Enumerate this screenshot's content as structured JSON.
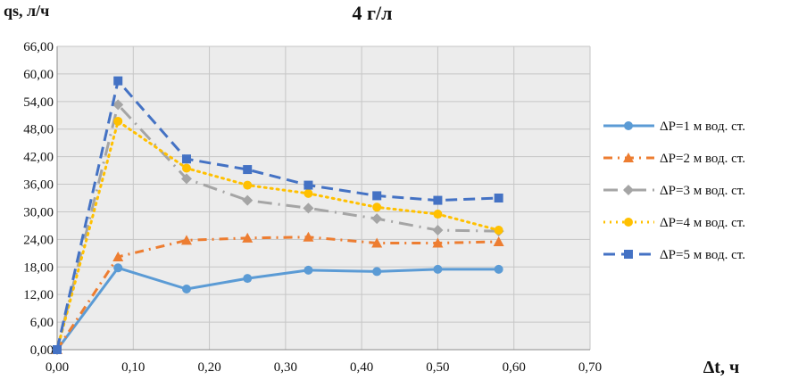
{
  "chart_data": {
    "type": "line",
    "title": "4 г/л",
    "ylabel": "qs, л/ч",
    "xlabel": "Δt, ч",
    "xlim": [
      0,
      0.7
    ],
    "ylim": [
      0,
      66
    ],
    "x_ticks": [
      "0,00",
      "0,10",
      "0,20",
      "0,30",
      "0,40",
      "0,50",
      "0,60",
      "0,70"
    ],
    "y_ticks": [
      "0,00",
      "6,00",
      "12,00",
      "18,00",
      "24,00",
      "30,00",
      "36,00",
      "42,00",
      "48,00",
      "54,00",
      "60,00",
      "66,00"
    ],
    "grid": true,
    "legend_position": "right",
    "x": [
      0,
      0.08,
      0.17,
      0.25,
      0.33,
      0.42,
      0.5,
      0.58
    ],
    "series": [
      {
        "name": "ΔP=1 м вод. ст.",
        "color": "#5B9BD5",
        "dash": "solid",
        "marker": "circle",
        "values": [
          0,
          17.8,
          13.2,
          15.5,
          17.3,
          17.0,
          17.5,
          17.5
        ]
      },
      {
        "name": "ΔP=2 м вод. ст.",
        "color": "#ED7D31",
        "dash": "dashdot",
        "marker": "triangle",
        "values": [
          0,
          20.2,
          23.8,
          24.3,
          24.5,
          23.2,
          23.2,
          23.5
        ]
      },
      {
        "name": "ΔP=3 м вод. ст.",
        "color": "#A5A5A5",
        "dash": "longdashdot",
        "marker": "diamond",
        "values": [
          0,
          53.3,
          37.2,
          32.5,
          30.8,
          28.5,
          26.0,
          25.8
        ]
      },
      {
        "name": "ΔP=4 м вод. ст.",
        "color": "#FFC000",
        "dash": "dotted",
        "marker": "circle",
        "values": [
          0,
          49.7,
          39.5,
          35.8,
          34.0,
          31.0,
          29.5,
          26.0
        ]
      },
      {
        "name": "ΔP=5 м вод. ст.",
        "color": "#4472C4",
        "dash": "dashed",
        "marker": "square",
        "values": [
          0,
          58.5,
          41.5,
          39.2,
          35.8,
          33.5,
          32.5,
          33.0
        ]
      }
    ]
  }
}
